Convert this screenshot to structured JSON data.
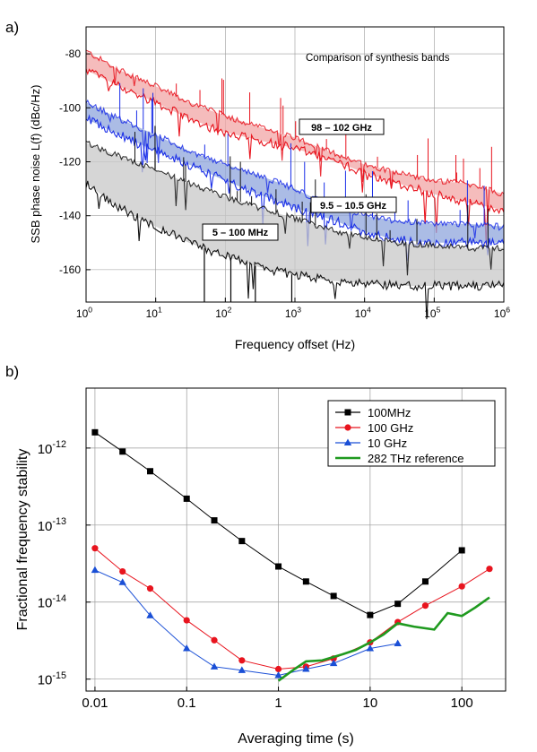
{
  "chart_data": [
    {
      "panel_label": "a)",
      "type": "line",
      "x_scale": "log",
      "xlabel": "Frequency offset (Hz)",
      "ylabel": "SSB phase noise L(f) (dBc/Hz)",
      "xlim": [
        1,
        1000000
      ],
      "ylim": [
        -172,
        -70
      ],
      "x_ticks": [
        {
          "v": 1,
          "base": "10",
          "exp": "0"
        },
        {
          "v": 10,
          "base": "10",
          "exp": "1"
        },
        {
          "v": 100,
          "base": "10",
          "exp": "2"
        },
        {
          "v": 1000,
          "base": "10",
          "exp": "3"
        },
        {
          "v": 10000,
          "base": "10",
          "exp": "4"
        },
        {
          "v": 100000,
          "base": "10",
          "exp": "5"
        },
        {
          "v": 1000000,
          "base": "10",
          "exp": "6"
        }
      ],
      "y_ticks": [
        {
          "v": -80,
          "label": "-80"
        },
        {
          "v": -100,
          "label": "-100"
        },
        {
          "v": -120,
          "label": "-120"
        },
        {
          "v": -140,
          "label": "-140"
        },
        {
          "v": -160,
          "label": "-160"
        }
      ],
      "annotation": "Comparison of synthesis bands",
      "bands": [
        {
          "name": "98 – 102 GHz",
          "color": "#e8141e",
          "fill": "#f2a6a6",
          "x": [
            1,
            3,
            10,
            30,
            100,
            300,
            1000,
            3000,
            10000,
            30000,
            100000,
            300000,
            1000000
          ],
          "upper": [
            -79,
            -86,
            -92,
            -98,
            -103,
            -107,
            -111,
            -116,
            -121,
            -124,
            -127,
            -128,
            -132
          ],
          "lower": [
            -86,
            -92,
            -98,
            -104,
            -109,
            -112,
            -115,
            -119,
            -124,
            -128,
            -132,
            -135,
            -138
          ]
        },
        {
          "name": "9.5 – 10.5 GHz",
          "color": "#1a2ee8",
          "fill": "#8fa6dc",
          "x": [
            1,
            3,
            10,
            30,
            100,
            300,
            1000,
            3000,
            10000,
            30000,
            100000,
            300000,
            1000000
          ],
          "upper": [
            -98,
            -104,
            -110,
            -116,
            -121,
            -125,
            -130,
            -136,
            -140,
            -142,
            -143,
            -143,
            -144
          ],
          "lower": [
            -104,
            -110,
            -116,
            -121,
            -127,
            -132,
            -137,
            -141,
            -146,
            -149,
            -150,
            -150,
            -150
          ]
        },
        {
          "name": "5 – 100 MHz",
          "color": "#111111",
          "fill": "#c8c8c8",
          "x": [
            1,
            3,
            10,
            30,
            100,
            300,
            1000,
            3000,
            10000,
            30000,
            100000,
            300000,
            1000000
          ],
          "upper": [
            -113,
            -118,
            -123,
            -128,
            -133,
            -137,
            -141,
            -145,
            -148,
            -150,
            -151,
            -152,
            -152
          ],
          "lower": [
            -128,
            -137,
            -144,
            -150,
            -155,
            -159,
            -162,
            -164,
            -165,
            -166,
            -166,
            -166,
            -166
          ]
        }
      ],
      "band_labels": [
        {
          "text": "98 – 102 GHz",
          "color": "#e8141e"
        },
        {
          "text": "9.5 – 10.5 GHz",
          "color": "#1a2ee8"
        },
        {
          "text": "5 – 100 MHz",
          "color": "#111111"
        }
      ],
      "grid": true
    },
    {
      "panel_label": "b)",
      "type": "line",
      "x_scale": "log",
      "y_scale": "log",
      "xlabel": "Averaging time (s)",
      "ylabel": "Fractional frequency stability",
      "xlim": [
        0.008,
        300
      ],
      "ylim": [
        7e-16,
        6e-12
      ],
      "x_ticks": [
        {
          "v": 0.01,
          "label": "0.01"
        },
        {
          "v": 0.1,
          "label": "0.1"
        },
        {
          "v": 1,
          "label": "1"
        },
        {
          "v": 10,
          "label": "10"
        },
        {
          "v": 100,
          "label": "100"
        }
      ],
      "y_ticks": [
        {
          "v": 1e-12,
          "base": "10",
          "exp": "-12"
        },
        {
          "v": 1e-13,
          "base": "10",
          "exp": "-13"
        },
        {
          "v": 1e-14,
          "base": "10",
          "exp": "-14"
        },
        {
          "v": 1e-15,
          "base": "10",
          "exp": "-15"
        }
      ],
      "legend_position": "top-right",
      "series": [
        {
          "name": "100MHz",
          "color": "#000000",
          "marker": "square",
          "x": [
            0.01,
            0.02,
            0.04,
            0.1,
            0.2,
            0.4,
            1,
            2,
            4,
            10,
            20,
            40,
            100
          ],
          "y": [
            1.6e-12,
            9e-13,
            5e-13,
            2.2e-13,
            1.15e-13,
            6.2e-14,
            2.9e-14,
            1.85e-14,
            1.2e-14,
            6.8e-15,
            9.5e-15,
            1.85e-14,
            4.7e-14
          ]
        },
        {
          "name": "100 GHz",
          "color": "#e8141e",
          "marker": "circle",
          "x": [
            0.01,
            0.02,
            0.04,
            0.1,
            0.2,
            0.4,
            1,
            2,
            4,
            10,
            20,
            40,
            100,
            200
          ],
          "y": [
            5e-14,
            2.5e-14,
            1.5e-14,
            5.8e-15,
            3.2e-15,
            1.75e-15,
            1.35e-15,
            1.45e-15,
            1.85e-15,
            3e-15,
            5.5e-15,
            9e-15,
            1.6e-14,
            2.7e-14
          ]
        },
        {
          "name": "10 GHz",
          "color": "#1a4fd6",
          "marker": "triangle",
          "x": [
            0.01,
            0.02,
            0.04,
            0.1,
            0.2,
            0.4,
            1,
            2,
            4,
            10,
            20
          ],
          "y": [
            2.6e-14,
            1.8e-14,
            6.7e-15,
            2.5e-15,
            1.45e-15,
            1.3e-15,
            1.12e-15,
            1.35e-15,
            1.6e-15,
            2.5e-15,
            2.9e-15
          ]
        },
        {
          "name": "282 THz reference",
          "color": "#1f9a1f",
          "marker": "none",
          "x": [
            1,
            1.5,
            2,
            3,
            5,
            7,
            10,
            14,
            20,
            30,
            50,
            70,
            100,
            140,
            200
          ],
          "y": [
            9.5e-16,
            1.35e-15,
            1.7e-15,
            1.75e-15,
            2.1e-15,
            2.4e-15,
            3e-15,
            3.8e-15,
            5.3e-15,
            4.8e-15,
            4.4e-15,
            7.2e-15,
            6.6e-15,
            8.5e-15,
            1.15e-14
          ]
        }
      ],
      "grid": true
    }
  ]
}
